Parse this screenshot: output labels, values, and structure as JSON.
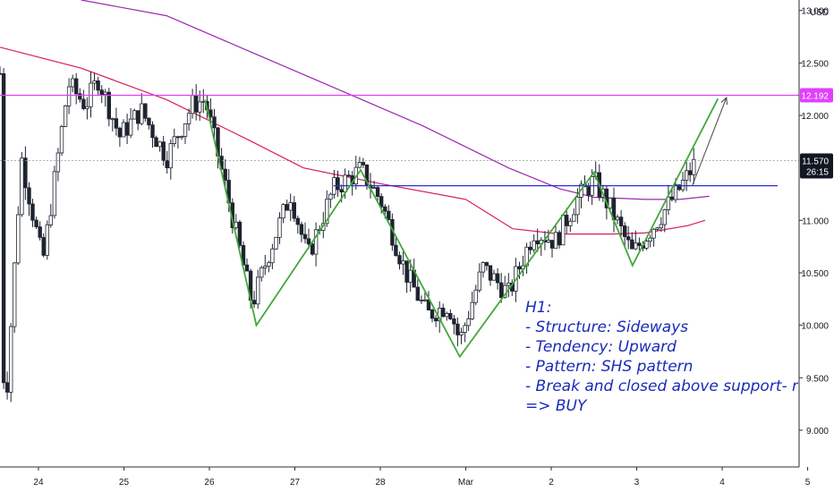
{
  "chart_data": {
    "type": "candlestick",
    "title": "",
    "axis": {
      "currency": "USD",
      "ylim": [
        8.65,
        13.1
      ],
      "y_ticks": [
        "13.000",
        "12.500",
        "12.000",
        "11.000",
        "10.500",
        "10.000",
        "9.500",
        "9.000"
      ],
      "x_ticks": [
        {
          "label": "24",
          "x": 0.5
        },
        {
          "label": "25",
          "x": 1.5
        },
        {
          "label": "26",
          "x": 2.5
        },
        {
          "label": "27",
          "x": 3.5
        },
        {
          "label": "28",
          "x": 4.5
        },
        {
          "label": "Mar",
          "x": 5.5
        },
        {
          "label": "2",
          "x": 6.5
        },
        {
          "label": "3",
          "x": 7.5
        },
        {
          "label": "4",
          "x": 8.5
        },
        {
          "label": "5",
          "x": 9.5
        }
      ],
      "xlim": [
        0.05,
        9.4
      ],
      "grid": false
    },
    "price_labels": [
      {
        "value": 12.192,
        "text": "12.192",
        "color": "#e040fb"
      },
      {
        "value": 11.57,
        "text": "11.570",
        "sub": "26:15",
        "color": "#131722"
      }
    ],
    "horizontal_lines": [
      {
        "name": "resistance",
        "y": 12.192,
        "x_from": 0.05,
        "x_to": 9.4,
        "color": "#e040fb"
      },
      {
        "name": "last-price",
        "y": 11.57,
        "x_from": 0.05,
        "x_to": 9.4,
        "color": "#9a9a9a"
      },
      {
        "name": "neckline",
        "y": 11.33,
        "x_from": 3.95,
        "x_to": 9.15,
        "color": "#2a2fd1"
      }
    ],
    "pattern_path": [
      [
        2.45,
        12.15
      ],
      [
        3.05,
        10.0
      ],
      [
        4.27,
        11.48
      ],
      [
        5.43,
        9.7
      ],
      [
        7.0,
        11.46
      ],
      [
        7.45,
        10.57
      ],
      [
        8.45,
        12.16
      ]
    ],
    "projection_arrow": {
      "from": [
        8.15,
        11.33
      ],
      "to": [
        8.55,
        12.17
      ]
    },
    "moving_averages": [
      {
        "name": "ma-crimson",
        "color": "#d81b60",
        "points": [
          [
            0.05,
            12.65
          ],
          [
            1.0,
            12.45
          ],
          [
            2.0,
            12.15
          ],
          [
            3.0,
            11.75
          ],
          [
            3.6,
            11.5
          ],
          [
            4.5,
            11.35
          ],
          [
            5.5,
            11.2
          ],
          [
            6.05,
            10.92
          ],
          [
            6.6,
            10.87
          ],
          [
            7.2,
            10.87
          ],
          [
            7.6,
            10.88
          ],
          [
            8.1,
            10.95
          ],
          [
            8.3,
            11.0
          ]
        ]
      },
      {
        "name": "ma-violet",
        "color": "#9c27b0",
        "points": [
          [
            1.0,
            13.1
          ],
          [
            2.0,
            12.95
          ],
          [
            3.0,
            12.6
          ],
          [
            4.0,
            12.25
          ],
          [
            5.0,
            11.9
          ],
          [
            6.0,
            11.5
          ],
          [
            6.6,
            11.3
          ],
          [
            7.0,
            11.22
          ],
          [
            7.6,
            11.2
          ],
          [
            8.0,
            11.2
          ],
          [
            8.35,
            11.23
          ]
        ]
      }
    ],
    "price_path": [
      [
        0.05,
        12.4
      ],
      [
        0.1,
        9.0
      ],
      [
        0.3,
        11.6
      ],
      [
        0.55,
        10.6
      ],
      [
        0.85,
        12.3
      ],
      [
        1.05,
        12.1
      ],
      [
        1.2,
        12.35
      ],
      [
        1.45,
        11.8
      ],
      [
        1.7,
        12.05
      ],
      [
        2.0,
        11.6
      ],
      [
        2.3,
        12.1
      ],
      [
        2.45,
        12.15
      ],
      [
        2.75,
        11.1
      ],
      [
        3.0,
        10.2
      ],
      [
        3.2,
        10.7
      ],
      [
        3.45,
        11.25
      ],
      [
        3.65,
        10.65
      ],
      [
        3.95,
        11.3
      ],
      [
        4.27,
        11.48
      ],
      [
        4.5,
        11.2
      ],
      [
        4.8,
        10.5
      ],
      [
        5.05,
        10.1
      ],
      [
        5.3,
        10.2
      ],
      [
        5.43,
        9.85
      ],
      [
        5.7,
        10.55
      ],
      [
        6.0,
        10.3
      ],
      [
        6.3,
        10.9
      ],
      [
        6.55,
        10.8
      ],
      [
        6.8,
        11.2
      ],
      [
        7.0,
        11.38
      ],
      [
        7.2,
        11.1
      ],
      [
        7.45,
        10.68
      ],
      [
        7.7,
        10.95
      ],
      [
        8.0,
        11.3
      ],
      [
        8.15,
        11.5
      ],
      [
        8.2,
        11.57
      ]
    ],
    "annotation": {
      "title": "H1:",
      "lines": [
        "- Structure: Sideways",
        "- Tendency: Upward",
        "- Pattern: SHS pattern",
        "- Break and closed above support- neckline",
        "=> BUY"
      ]
    },
    "colors": {
      "up": "#26a69a",
      "down": "#ef5350",
      "candle": "#1f2430",
      "pattern": "#43a83a",
      "arrow": "#444444",
      "axis_text": "#131722"
    }
  }
}
